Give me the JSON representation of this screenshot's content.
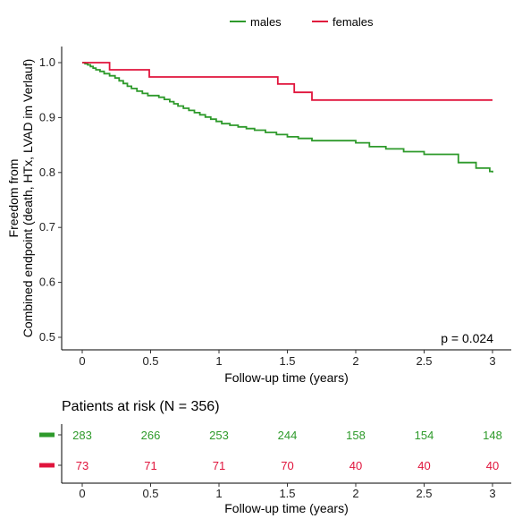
{
  "chart_data": [
    {
      "type": "line",
      "subtype": "kaplan-meier-step",
      "title": "",
      "xlabel": "Follow-up time (years)",
      "ylabel_lines": [
        "Freedom from",
        "Combined endpoint (death, HTx, LVAD im Verlauf)"
      ],
      "xlim": [
        0,
        3
      ],
      "ylim": [
        0.5,
        1.0
      ],
      "x_ticks": [
        0,
        0.5,
        1,
        1.5,
        2,
        2.5,
        3
      ],
      "x_tick_labels": [
        "0",
        "0.5",
        "1",
        "1.5",
        "2",
        "2.5",
        "3"
      ],
      "y_ticks": [
        0.5,
        0.6,
        0.7,
        0.8,
        0.9,
        1.0
      ],
      "y_tick_labels": [
        "0.5",
        "0.6",
        "0.7",
        "0.8",
        "0.9",
        "1.0"
      ],
      "grid": false,
      "legend_position": "top",
      "annotation": "p = 0.024",
      "series": [
        {
          "name": "males",
          "color": "#2e9a2b",
          "x": [
            0,
            0.02,
            0.04,
            0.06,
            0.08,
            0.1,
            0.13,
            0.16,
            0.2,
            0.24,
            0.27,
            0.3,
            0.33,
            0.36,
            0.4,
            0.44,
            0.48,
            0.52,
            0.56,
            0.6,
            0.64,
            0.67,
            0.7,
            0.74,
            0.78,
            0.82,
            0.86,
            0.9,
            0.94,
            0.98,
            1.02,
            1.08,
            1.14,
            1.2,
            1.26,
            1.34,
            1.42,
            1.5,
            1.58,
            1.68,
            1.83,
            2.0,
            2.1,
            2.22,
            2.35,
            2.5,
            2.62,
            2.75,
            2.88,
            2.98,
            3.0
          ],
          "y": [
            1.0,
            0.998,
            0.996,
            0.993,
            0.99,
            0.987,
            0.984,
            0.98,
            0.976,
            0.972,
            0.967,
            0.962,
            0.957,
            0.953,
            0.948,
            0.944,
            0.94,
            0.94,
            0.937,
            0.933,
            0.929,
            0.925,
            0.921,
            0.917,
            0.913,
            0.909,
            0.905,
            0.901,
            0.897,
            0.893,
            0.889,
            0.886,
            0.883,
            0.88,
            0.877,
            0.873,
            0.869,
            0.865,
            0.862,
            0.858,
            0.858,
            0.854,
            0.847,
            0.843,
            0.838,
            0.833,
            0.833,
            0.818,
            0.808,
            0.802,
            0.8
          ]
        },
        {
          "name": "females",
          "color": "#e0143c",
          "x": [
            0,
            0.2,
            0.49,
            1.43,
            1.55,
            1.68,
            3.0
          ],
          "y": [
            1.0,
            0.987,
            0.974,
            0.961,
            0.946,
            0.932,
            0.932
          ]
        }
      ]
    },
    {
      "type": "table",
      "title": "Patients at risk (N = 356)",
      "xlabel": "Follow-up time (years)",
      "x_ticks": [
        0,
        0.5,
        1,
        1.5,
        2,
        2.5,
        3
      ],
      "x_tick_labels": [
        "0",
        "0.5",
        "1",
        "1.5",
        "2",
        "2.5",
        "3"
      ],
      "rows": [
        {
          "name": "males",
          "color": "#2e9a2b",
          "values": [
            "283",
            "266",
            "253",
            "244",
            "158",
            "154",
            "148"
          ]
        },
        {
          "name": "females",
          "color": "#e0143c",
          "values": [
            "73",
            "71",
            "71",
            "70",
            "40",
            "40",
            "40"
          ]
        }
      ]
    }
  ]
}
